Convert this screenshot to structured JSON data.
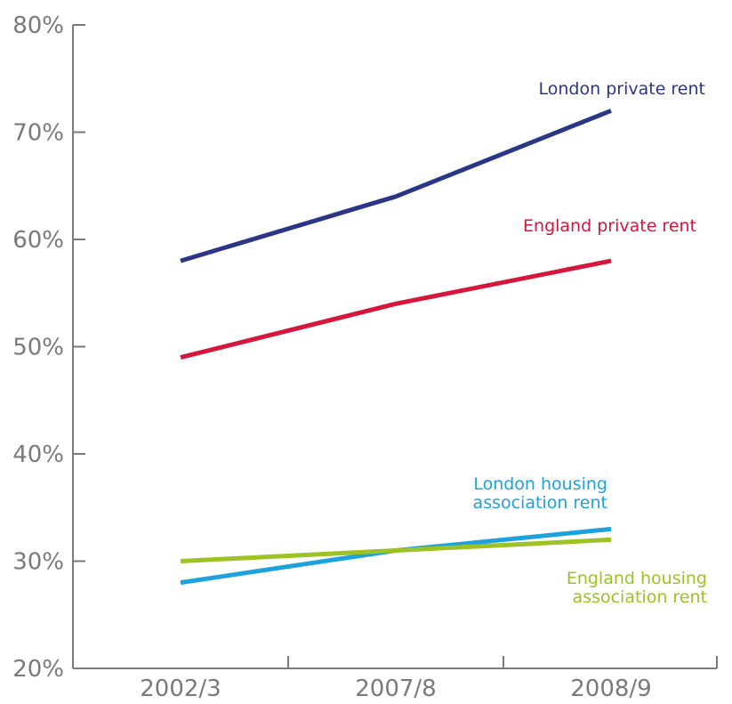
{
  "chart_data": {
    "type": "line",
    "title": "",
    "xlabel": "",
    "ylabel": "",
    "categories": [
      "2002/3",
      "2007/8",
      "2008/9"
    ],
    "ylim": [
      20,
      80
    ],
    "yticks": [
      20,
      30,
      40,
      50,
      60,
      70,
      80
    ],
    "ytick_labels": [
      "20%",
      "30%",
      "40%",
      "50%",
      "60%",
      "70%",
      "80%"
    ],
    "grid": false,
    "legend": "inline labels beside each line",
    "series": [
      {
        "name": "London private rent",
        "label_lines": [
          "London private rent"
        ],
        "values": [
          58,
          64,
          72
        ],
        "color": "#2b3687"
      },
      {
        "name": "England private rent",
        "label_lines": [
          "England private rent"
        ],
        "values": [
          49,
          54,
          58
        ],
        "color": "#d7163c"
      },
      {
        "name": "London housing association rent",
        "label_lines": [
          "London housing",
          "association rent"
        ],
        "values": [
          28,
          31,
          33
        ],
        "color": "#1ea2de"
      },
      {
        "name": "England housing association rent",
        "label_lines": [
          "England housing",
          "association rent"
        ],
        "values": [
          30,
          31,
          32
        ],
        "color": "#9cc224"
      }
    ]
  }
}
